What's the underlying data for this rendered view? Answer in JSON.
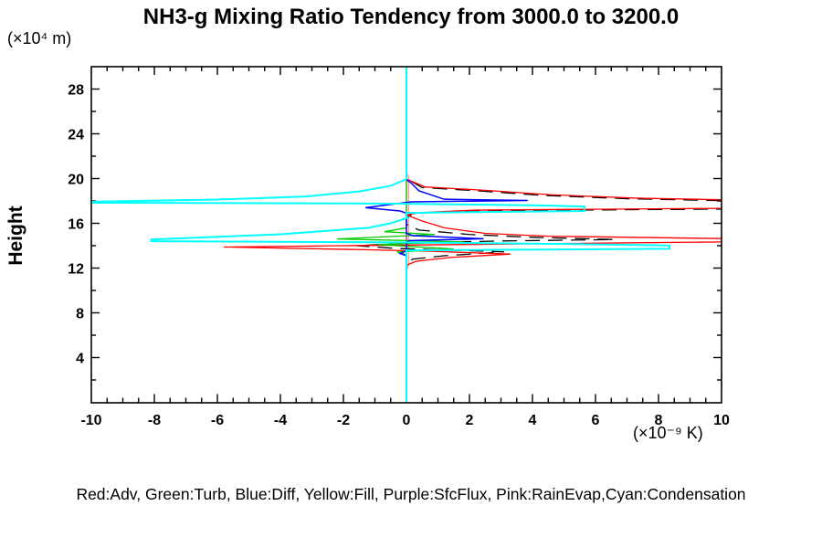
{
  "chart": {
    "title": "NH3-g Mixing Ratio Tendency from 3000.0 to 3200.0",
    "y_unit": "(×10⁴ m)",
    "y_axis_label": "Height",
    "x_unit": "(×10⁻⁹ K)",
    "legend": "Red:Adv, Green:Turb, Blue:Diff, Yellow:Fill, Purple:SfcFlux, Pink:RainEvap,Cyan:Condensation"
  },
  "chart_data": {
    "type": "line",
    "title": "NH3-g Mixing Ratio Tendency from 3000.0 to 3200.0",
    "xlabel": "(×10⁻⁹ K)",
    "ylabel": "Height (×10⁴ m)",
    "xlim": [
      -10,
      10
    ],
    "ylim": [
      0,
      30
    ],
    "x_ticks": [
      -10,
      -8,
      -6,
      -4,
      -2,
      0,
      2,
      4,
      6,
      8,
      10
    ],
    "y_ticks": [
      4,
      8,
      12,
      16,
      20,
      24,
      28
    ],
    "x_minor_step": 0.5,
    "y_minor_step": 2,
    "grid": false,
    "legend_position": "bottom",
    "legend_text": "Red:Adv, Green:Turb, Blue:Diff, Yellow:Fill, Purple:SfcFlux, Pink:RainEvap,Cyan:Condensation",
    "zero_line": {
      "color": "#00ffff",
      "x": 0
    },
    "series": [
      {
        "name": "Fill",
        "color": "#ffff00",
        "width": 1.2,
        "dash": "",
        "points": [
          [
            0,
            29.95
          ],
          [
            0,
            0.05
          ]
        ]
      },
      {
        "name": "SfcFlux",
        "color": "#cc00cc",
        "width": 1.2,
        "dash": "",
        "points": [
          [
            0,
            29.95
          ],
          [
            0,
            0.05
          ]
        ]
      },
      {
        "name": "RainEvap",
        "color": "#ff9999",
        "width": 1.4,
        "dash": "",
        "points": [
          [
            0,
            20.6
          ],
          [
            0.07,
            20.1
          ],
          [
            0.07,
            12.3
          ],
          [
            0,
            11.8
          ]
        ]
      },
      {
        "name": "Total",
        "color": "#000000",
        "width": 1.3,
        "dash": "16 9",
        "points": [
          [
            0,
            29.7
          ],
          [
            0,
            20.0
          ],
          [
            0.5,
            19.2
          ],
          [
            2.3,
            18.9
          ],
          [
            4.3,
            18.5
          ],
          [
            7.0,
            18.2
          ],
          [
            10.5,
            18.0
          ],
          [
            10.5,
            17.28
          ],
          [
            2.0,
            17.12
          ],
          [
            0.3,
            16.9
          ],
          [
            0,
            16.55
          ],
          [
            0,
            15.9
          ],
          [
            0.4,
            15.4
          ],
          [
            2.0,
            15.0
          ],
          [
            4.0,
            14.75
          ],
          [
            6.6,
            14.55
          ],
          [
            3.0,
            14.42
          ],
          [
            0.3,
            14.25
          ],
          [
            -1.6,
            14.0
          ],
          [
            -0.3,
            13.75
          ],
          [
            3.1,
            13.45
          ],
          [
            1.2,
            13.1
          ],
          [
            0.2,
            12.8
          ],
          [
            0,
            12.4
          ],
          [
            0,
            0.2
          ]
        ]
      },
      {
        "name": "Adv",
        "color": "#ff0000",
        "width": 1.3,
        "dash": "",
        "points": [
          [
            0,
            29.7
          ],
          [
            0,
            19.95
          ],
          [
            0.6,
            19.25
          ],
          [
            2.5,
            18.95
          ],
          [
            4.6,
            18.55
          ],
          [
            7.3,
            18.25
          ],
          [
            10.5,
            18.08
          ],
          [
            10.5,
            17.35
          ],
          [
            2.2,
            17.18
          ],
          [
            0.4,
            16.95
          ],
          [
            0,
            16.75
          ],
          [
            0.5,
            16.2
          ],
          [
            1.2,
            15.6
          ],
          [
            2.5,
            15.1
          ],
          [
            4.5,
            14.85
          ],
          [
            10.5,
            14.62
          ],
          [
            10.5,
            14.35
          ],
          [
            3.5,
            14.15
          ],
          [
            -2.0,
            14.0
          ],
          [
            -5.8,
            13.88
          ],
          [
            -1.5,
            13.65
          ],
          [
            0.8,
            13.5
          ],
          [
            3.3,
            13.25
          ],
          [
            1.4,
            12.95
          ],
          [
            0.3,
            12.6
          ],
          [
            0,
            12.25
          ],
          [
            0,
            0.2
          ]
        ]
      },
      {
        "name": "Turb",
        "color": "#00cc00",
        "width": 1.3,
        "dash": "",
        "points": [
          [
            0,
            29.7
          ],
          [
            0,
            15.6
          ],
          [
            -0.7,
            15.25
          ],
          [
            0.9,
            15.0
          ],
          [
            -2.2,
            14.6
          ],
          [
            1.8,
            14.35
          ],
          [
            -0.9,
            14.1
          ],
          [
            1.5,
            13.7
          ],
          [
            -0.3,
            13.45
          ],
          [
            0,
            13.2
          ],
          [
            0,
            0.2
          ]
        ]
      },
      {
        "name": "Diff",
        "color": "#0000ff",
        "width": 1.5,
        "dash": "",
        "points": [
          [
            0,
            29.7
          ],
          [
            0,
            19.9
          ],
          [
            0.15,
            19.6
          ],
          [
            0.4,
            18.9
          ],
          [
            1.2,
            18.15
          ],
          [
            3.85,
            18.04
          ],
          [
            0.15,
            17.92
          ],
          [
            -1.3,
            17.4
          ],
          [
            -0.2,
            17.1
          ],
          [
            0,
            16.9
          ],
          [
            0,
            15.1
          ],
          [
            0.2,
            14.9
          ],
          [
            2.45,
            14.62
          ],
          [
            0.1,
            14.45
          ],
          [
            0,
            14.3
          ],
          [
            0,
            13.55
          ],
          [
            -0.2,
            13.3
          ],
          [
            0,
            13.1
          ],
          [
            0,
            0.2
          ]
        ]
      },
      {
        "name": "Condensation",
        "color": "#00ffff",
        "width": 2,
        "dash": "",
        "points": [
          [
            0,
            30
          ],
          [
            0,
            19.95
          ],
          [
            -0.5,
            19.35
          ],
          [
            -1.5,
            18.85
          ],
          [
            -3.2,
            18.4
          ],
          [
            -6.0,
            18.12
          ],
          [
            -9.95,
            17.93
          ],
          [
            -9.95,
            17.84
          ],
          [
            -0.3,
            17.76
          ],
          [
            4.2,
            17.6
          ],
          [
            5.65,
            17.5
          ],
          [
            5.65,
            17.1
          ],
          [
            0,
            16.93
          ],
          [
            0,
            16.6
          ],
          [
            0.05,
            16.5
          ],
          [
            -0.5,
            16.0
          ],
          [
            -1.2,
            15.6
          ],
          [
            -4.0,
            15.02
          ],
          [
            -8.1,
            14.55
          ],
          [
            -8.1,
            14.4
          ],
          [
            -0.2,
            14.3
          ],
          [
            5.0,
            14.15
          ],
          [
            8.35,
            14.02
          ],
          [
            8.35,
            13.72
          ],
          [
            0,
            13.58
          ],
          [
            0,
            0
          ]
        ]
      }
    ]
  }
}
